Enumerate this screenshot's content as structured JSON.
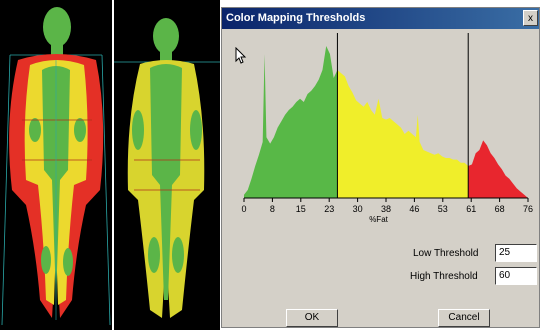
{
  "dialog": {
    "title": "Color Mapping Thresholds",
    "close_label": "x",
    "low_threshold_label": "Low Threshold",
    "low_threshold_value": "25",
    "high_threshold_label": "High Threshold",
    "high_threshold_value": "60",
    "ok_label": "OK",
    "cancel_label": "Cancel"
  },
  "scans": {
    "left_image": "body-composition-scan-front",
    "right_image": "body-composition-scan-front"
  },
  "colors": {
    "green": "#58b847",
    "yellow": "#f0ee2a",
    "red": "#e8262e",
    "dialog_bg": "#d4d0c8",
    "titlebar": "#0a246a"
  },
  "chart_data": {
    "type": "area",
    "xlabel": "%Fat",
    "xlim": [
      0,
      76
    ],
    "x_ticks": [
      "0",
      "8",
      "15",
      "23",
      "30",
      "38",
      "46",
      "53",
      "61",
      "68",
      "76"
    ],
    "thresholds": [
      25,
      60
    ],
    "x": [
      0,
      1,
      2,
      3,
      4,
      5,
      5.5,
      6,
      7,
      8,
      9,
      10,
      11,
      12,
      13,
      14,
      15,
      16,
      17,
      18,
      19,
      20,
      21,
      22,
      23,
      24,
      25,
      26,
      27,
      28,
      29,
      30,
      31,
      32,
      33,
      34,
      35,
      36,
      37,
      38,
      39,
      40,
      41,
      42,
      43,
      44,
      45,
      46,
      46.5,
      47,
      48,
      49,
      50,
      51,
      52,
      53,
      54,
      55,
      56,
      57,
      58,
      59,
      60,
      61,
      62,
      63,
      64,
      65,
      66,
      67,
      68,
      69,
      70,
      71,
      72,
      73,
      74,
      75,
      76
    ],
    "y": [
      2,
      5,
      12,
      20,
      27,
      35,
      90,
      38,
      34,
      38,
      44,
      48,
      52,
      55,
      57,
      60,
      62,
      60,
      65,
      67,
      70,
      74,
      80,
      95,
      90,
      75,
      80,
      78,
      76,
      70,
      66,
      61,
      59,
      57,
      60,
      55,
      52,
      62,
      50,
      49,
      50,
      48,
      46,
      44,
      40,
      42,
      40,
      38,
      52,
      35,
      30,
      29,
      28,
      27,
      28,
      26,
      25,
      25,
      24,
      24,
      22,
      22,
      20,
      21,
      28,
      30,
      36,
      33,
      28,
      25,
      21,
      18,
      14,
      12,
      9,
      6,
      4,
      2,
      0
    ]
  }
}
